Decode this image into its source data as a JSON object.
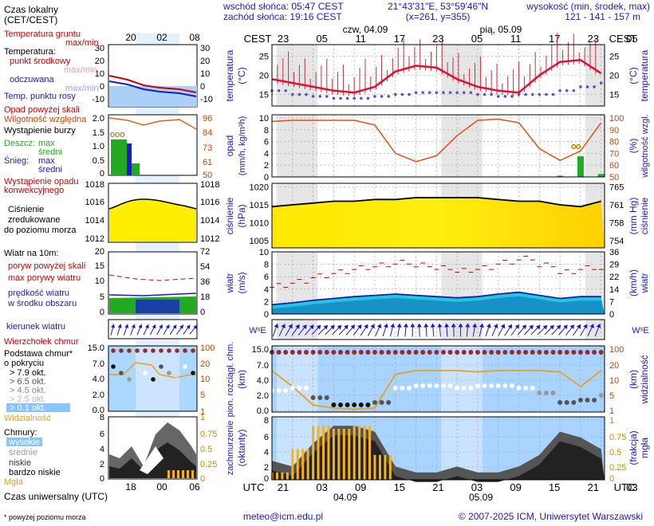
{
  "header": {
    "sunrise": "wschód słońca: 05:47 CEST",
    "sunset": "zachód słońca: 19:16 CEST",
    "coords": "21°43'31\"E, 53°59'46\"N",
    "grid": "(x=261,  y=355)",
    "height_title": "wysokość (min, środek, max)",
    "heights": "121 - 141 - 157 m"
  },
  "legend": {
    "time_local": "Czas lokalny",
    "time_local2": "(CET/CEST)",
    "local_ticks": [
      "20",
      "02",
      "08"
    ],
    "ground_temp": "Temperatura gruntu",
    "ground_maxmin": "max/min",
    "temperature": "Temperatura:",
    "mid_point": "punkt środkowy",
    "max_min": "max/min",
    "felt": "odczuwana",
    "felt_maxmin": "max/min",
    "dew": "Temp. punktu rosy",
    "rain_above": "Opad powyżej skali",
    "storm": "Wystąpienie burzy",
    "rh": "Wilgotność względna",
    "rain_label": "Deszcz:",
    "rain_max": "max",
    "rain_mean": "średni",
    "snow_label": "Śnieg:",
    "snow_max": "max",
    "snow_mean": "średni",
    "conv": "Wystąpienie opadu",
    "conv2": "konwekcyjnego",
    "pres1": "Ciśnienie",
    "pres2": "zredukowane",
    "pres3": "do poziomu morza",
    "wind_title": "Wiatr na 10m:",
    "gust_above": "poryw powyżej skali",
    "max_gust": "max porywy wiatru",
    "wind_speed": "prędkość wiatru",
    "wind_area": "w środku obszaru",
    "wind_dir": "kierunek wiatru",
    "cloud_top": "Wierzchołek chmur",
    "cloud_base": "Podstawa chmur*",
    "cloud_base2": "o pokryciu",
    "okt": [
      "> 7.9 okt.",
      "> 6.5 okt.",
      "> 4.5 okt.",
      "> 2.5 okt.",
      "> 0.1 okt."
    ],
    "visibility": "Widzialność",
    "clouds": "Chmury:",
    "high": "wysokie",
    "mid": "średnie",
    "low": "niskie",
    "very_low": "bardzo niskie",
    "fog": "Mgła",
    "utc_ticks": [
      "18",
      "00",
      "06"
    ],
    "utc_title": "Czas uniwersalny (UTC)",
    "footnote": "* powyżej poziomu morza",
    "axes": {
      "temp_l": [
        "30",
        "20",
        "10",
        "0",
        "-10"
      ],
      "temp_r": [
        "30",
        "20",
        "10",
        "0",
        "-10"
      ],
      "rain_l": [
        "2.0",
        "1.5",
        "1.0",
        "0.5",
        "0"
      ],
      "rh_r": [
        "96",
        "84",
        "73",
        "61",
        "50"
      ],
      "pres_l": [
        "1018",
        "1016",
        "1014",
        "1012"
      ],
      "pres_r": [
        "1018",
        "1016",
        "1014",
        "1012"
      ],
      "wind_l": [
        "20",
        "15",
        "10",
        "5",
        "0"
      ],
      "wind_r": [
        "72",
        "54",
        "36",
        "18",
        "0"
      ],
      "cb_l": [
        "15.0",
        "7.0",
        "4.0",
        "2.0",
        "0.0"
      ],
      "vis_r": [
        "100",
        "20",
        "10",
        "5",
        "1"
      ],
      "cl_l": [
        "8",
        "6",
        "4",
        "2",
        "0"
      ],
      "cl_r": [
        "1",
        "0.75",
        "0.5",
        "0.25",
        "0"
      ]
    }
  },
  "meteogram": {
    "cest": "CEST",
    "utc": "UTC",
    "day1": "czw, 04.09",
    "day2": "pią, 05.09",
    "date1": "04.09",
    "date2": "05.09",
    "top_ticks": [
      "23",
      "05",
      "11",
      "17",
      "23",
      "05",
      "11",
      "17",
      "23",
      "05"
    ],
    "bottom_ticks": [
      "21",
      "03",
      "09",
      "15",
      "21",
      "03",
      "09",
      "15",
      "21",
      "03"
    ],
    "panels": {
      "temp": {
        "l1": "temperatura",
        "l2": "(°C)",
        "r1": "(°C)",
        "r2": "temperatura",
        "ticks": [
          "25",
          "20",
          "15"
        ]
      },
      "rain": {
        "l1": "opad",
        "l2": "(mm/h, kg/m²h)",
        "r1": "(%)",
        "r2": "wilgotność wzgl.",
        "ticks_l": [
          "10",
          "8",
          "6",
          "4",
          "2",
          "0"
        ],
        "ticks_r": [
          "100",
          "90",
          "80",
          "70",
          "60",
          "50"
        ]
      },
      "pres": {
        "l1": "ciśnienie",
        "l2": "(hPa)",
        "r1": "(mm Hg)",
        "r2": "ciśnienie",
        "ticks_l": [
          "1020",
          "1015",
          "1010",
          "1005"
        ],
        "ticks_r": [
          "765",
          "761",
          "758",
          "754"
        ]
      },
      "wind": {
        "l1": "wiatr",
        "l2": "(m/s)",
        "r1": "(km/h)",
        "r2": "wiatr",
        "ticks_l": [
          "10",
          "8",
          "6",
          "4",
          "2",
          "0"
        ],
        "ticks_r": [
          "36",
          "29",
          "22",
          "14",
          "7",
          "0"
        ]
      },
      "cb": {
        "l1": "pion. rozciągł. chm.",
        "l2": "(km)",
        "r1": "(km)",
        "r2": "widzialność",
        "ticks_l": [
          "15.0",
          "7.0",
          "4.0",
          "2.0",
          "0.0"
        ],
        "ticks_r": [
          "100",
          "20",
          "10",
          "5",
          "1"
        ]
      },
      "cl": {
        "l1": "zachmurzenie",
        "l2": "(oktanty)",
        "r1": "(frakcja)",
        "r2": "mgła",
        "ticks_l": [
          "8",
          "6",
          "4",
          "2",
          "0"
        ],
        "ticks_r": [
          "1",
          "0.75",
          "0.5",
          "0.25",
          "0"
        ]
      }
    }
  },
  "chart_data": {
    "type": "line",
    "x_hours_utc": [
      18,
      21,
      24,
      27,
      30,
      33,
      36,
      39,
      42,
      45,
      48,
      51,
      54,
      57,
      60,
      63,
      66
    ],
    "temperature": [
      19,
      18,
      17,
      16,
      15.5,
      17,
      21,
      22.5,
      22,
      19,
      17,
      16,
      15.5,
      20,
      23.5,
      24,
      20.5
    ],
    "dew_point": [
      16,
      15,
      14.5,
      14,
      14,
      14.5,
      15,
      15.5,
      15.5,
      15.5,
      15,
      14.5,
      15,
      15,
      16,
      17,
      18
    ],
    "humidity": [
      97,
      98,
      98,
      98,
      98,
      94,
      70,
      63,
      68,
      85,
      98,
      99,
      96,
      74,
      64,
      72,
      96
    ],
    "pressure": [
      1014.5,
      1015,
      1015.5,
      1016,
      1016,
      1016.5,
      1016.5,
      1017,
      1017,
      1017,
      1017,
      1016.5,
      1016,
      1016,
      1015,
      1014.5,
      1016
    ],
    "wind_speed": [
      1.5,
      1.8,
      2.2,
      2.5,
      2.8,
      3.0,
      3.2,
      3.0,
      2.8,
      2.6,
      2.8,
      3.2,
      3.5,
      3.0,
      2.5,
      2.8,
      2.8
    ],
    "visibility": [
      20,
      6,
      1.5,
      1.2,
      1.1,
      1.2,
      15,
      20,
      20,
      20,
      18,
      20,
      20,
      20,
      18,
      6,
      20
    ],
    "precipitation_max": [
      0,
      0,
      0,
      0,
      0,
      0,
      0,
      0,
      0,
      0,
      0,
      0,
      0,
      0,
      0.2,
      3.5,
      0.5
    ],
    "cloud_cover_low": [
      0.3,
      0.2,
      0.6,
      0.9,
      0.9,
      0.8,
      0.2,
      0.1,
      0.1,
      0.2,
      0.1,
      0.1,
      0.2,
      0.4,
      0.8,
      0.7,
      0.5
    ],
    "fog_fraction": [
      0.1,
      0.5,
      0.9,
      0.85,
      0.9,
      0.4,
      0,
      0,
      0,
      0,
      0,
      0,
      0,
      0,
      0,
      0,
      0
    ]
  }
}
